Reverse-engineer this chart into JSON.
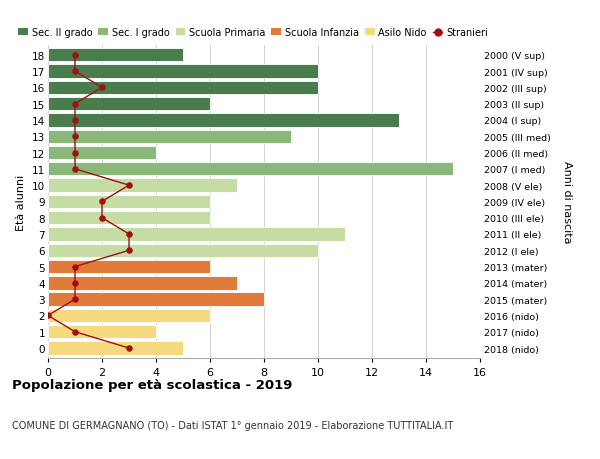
{
  "ages": [
    18,
    17,
    16,
    15,
    14,
    13,
    12,
    11,
    10,
    9,
    8,
    7,
    6,
    5,
    4,
    3,
    2,
    1,
    0
  ],
  "right_labels": [
    "2000 (V sup)",
    "2001 (IV sup)",
    "2002 (III sup)",
    "2003 (II sup)",
    "2004 (I sup)",
    "2005 (III med)",
    "2006 (II med)",
    "2007 (I med)",
    "2008 (V ele)",
    "2009 (IV ele)",
    "2010 (III ele)",
    "2011 (II ele)",
    "2012 (I ele)",
    "2013 (mater)",
    "2014 (mater)",
    "2015 (mater)",
    "2016 (nido)",
    "2017 (nido)",
    "2018 (nido)"
  ],
  "bar_values": [
    5,
    10,
    10,
    6,
    13,
    9,
    4,
    15,
    7,
    6,
    6,
    11,
    10,
    6,
    7,
    8,
    6,
    4,
    5
  ],
  "bar_colors": [
    "#4a7c4e",
    "#4a7c4e",
    "#4a7c4e",
    "#4a7c4e",
    "#4a7c4e",
    "#8ab87a",
    "#8ab87a",
    "#8ab87a",
    "#c5dda4",
    "#c5dda4",
    "#c5dda4",
    "#c5dda4",
    "#c5dda4",
    "#e07b39",
    "#e07b39",
    "#e07b39",
    "#f5d97e",
    "#f5d97e",
    "#f5d97e"
  ],
  "stranieri_values": [
    1,
    1,
    2,
    1,
    1,
    1,
    1,
    1,
    3,
    2,
    2,
    3,
    3,
    1,
    1,
    1,
    0,
    1,
    3
  ],
  "legend_items": [
    {
      "label": "Sec. II grado",
      "color": "#4a7c4e"
    },
    {
      "label": "Sec. I grado",
      "color": "#8ab87a"
    },
    {
      "label": "Scuola Primaria",
      "color": "#c5dda4"
    },
    {
      "label": "Scuola Infanzia",
      "color": "#e07b39"
    },
    {
      "label": "Asilo Nido",
      "color": "#f5d97e"
    }
  ],
  "ylabel_left": "Età alunni",
  "ylabel_right": "Anni di nascita",
  "title": "Popolazione per età scolastica - 2019",
  "subtitle": "COMUNE DI GERMAGNANO (TO) - Dati ISTAT 1° gennaio 2019 - Elaborazione TUTTITALIA.IT",
  "xlim": [
    0,
    16
  ],
  "xticks": [
    0,
    2,
    4,
    6,
    8,
    10,
    12,
    14,
    16
  ],
  "stranieri_color": "#a01010",
  "grid_color": "#cccccc",
  "bg_color": "#ffffff",
  "bar_height": 0.82
}
